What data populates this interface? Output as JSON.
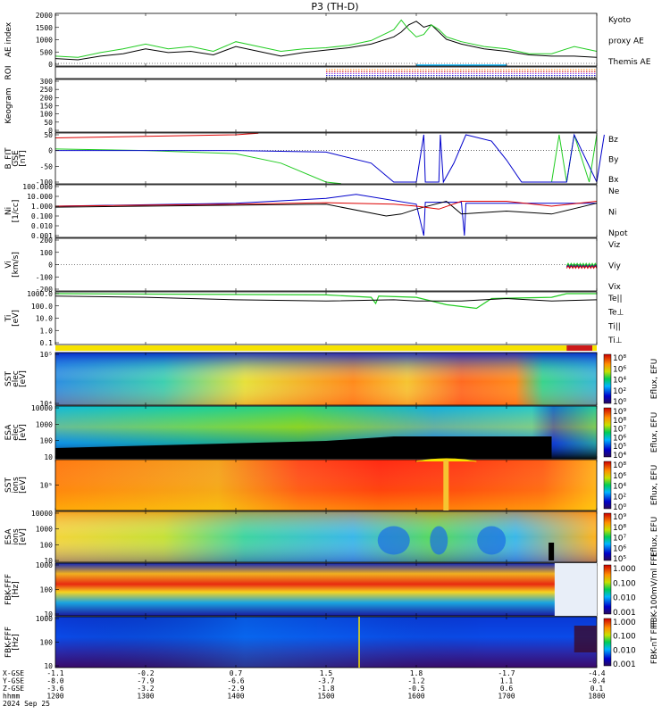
{
  "title": "P3 (TH-D)",
  "date_label": "2024 Sep 25",
  "chart_data": {
    "type": "line",
    "x_axis": {
      "tick_labels": [
        "1200",
        "1300",
        "1400",
        "1500",
        "1600",
        "1700",
        "1800"
      ],
      "hhmm": [
        1200,
        1300,
        1400,
        1500,
        1600,
        1700,
        1800
      ],
      "row_labels": [
        "X-GSE",
        "Y-GSE",
        "Z-GSE",
        "hhmm"
      ],
      "rows": {
        "X-GSE": [
          "-1.1",
          "-0.2",
          "0.7",
          "1.5",
          "1.8",
          "-1.7",
          "-4.4"
        ],
        "Y-GSE": [
          "-8.0",
          "-7.9",
          "-6.6",
          "-3.7",
          "-1.2",
          "1.1",
          "-0.4"
        ],
        "Z-GSE": [
          "-3.6",
          "-3.2",
          "-2.9",
          "-1.8",
          "-0.5",
          "0.6",
          "0.1"
        ]
      }
    },
    "panels": [
      {
        "id": "ae",
        "ylabel": "AE index",
        "yticks": [
          "2000",
          "1500",
          "1000",
          "500",
          "0"
        ],
        "legend": [
          {
            "text": "Kyoto",
            "color": "#22cc22"
          },
          {
            "text": "proxy AE",
            "color": "#22cc22"
          },
          {
            "text": "Themis AE",
            "color": "#000000"
          }
        ],
        "series": [
          {
            "color": "#000000",
            "x": [
              1200,
              1215,
              1230,
              1245,
              1300,
              1315,
              1330,
              1345,
              1400,
              1415,
              1430,
              1445,
              1500,
              1515,
              1530,
              1545,
              1550,
              1555,
              1600,
              1605,
              1610,
              1615,
              1620,
              1630,
              1645,
              1700,
              1715,
              1730,
              1745,
              1800
            ],
            "y": [
              200,
              150,
              300,
              400,
              600,
              450,
              500,
              350,
              700,
              500,
              300,
              450,
              550,
              650,
              800,
              1100,
              1300,
              1600,
              1750,
              1500,
              1600,
              1300,
              1000,
              800,
              600,
              500,
              350,
              300,
              300,
              250
            ]
          },
          {
            "color": "#22cc22",
            "x": [
              1200,
              1215,
              1230,
              1245,
              1300,
              1315,
              1330,
              1345,
              1400,
              1415,
              1430,
              1445,
              1500,
              1515,
              1530,
              1545,
              1550,
              1555,
              1600,
              1605,
              1610,
              1615,
              1620,
              1630,
              1645,
              1700,
              1715,
              1730,
              1745,
              1800
            ],
            "y": [
              300,
              250,
              450,
              600,
              800,
              600,
              700,
              500,
              900,
              700,
              500,
              600,
              650,
              750,
              950,
              1400,
              1800,
              1400,
              1100,
              1200,
              1600,
              1400,
              1100,
              900,
              700,
              600,
              400,
              400,
              700,
              500
            ]
          }
        ]
      },
      {
        "id": "roi",
        "ylabel": "ROI"
      },
      {
        "id": "keogram",
        "ylabel": "Keogram",
        "yticks": [
          "300",
          "250",
          "200",
          "150",
          "100",
          "50",
          "0"
        ]
      },
      {
        "id": "bfit",
        "ylabel": "B_FIT GSE [nT]",
        "yticks": [
          "50",
          "0",
          "-50",
          "-100"
        ],
        "legend": [
          {
            "text": "Bz",
            "color": "#dd0000"
          },
          {
            "text": "By",
            "color": "#22cc22"
          },
          {
            "text": "Bx",
            "color": "#0000cc"
          }
        ]
      },
      {
        "id": "ni",
        "ylabel": "Ni [1/cc]",
        "yticks": [
          "100.000",
          "10.000",
          "1.000",
          "0.100",
          "0.010",
          "0.001"
        ],
        "legend": [
          {
            "text": "Ne",
            "color": "#dd0000"
          },
          {
            "text": "Ni",
            "color": "#000000"
          },
          {
            "text": "Npot",
            "color": "#0000cc"
          }
        ]
      },
      {
        "id": "vi",
        "ylabel": "Vi [km/s]",
        "yticks": [
          "200",
          "100",
          "0",
          "-100",
          "-200"
        ],
        "legend": [
          {
            "text": "Viz",
            "color": "#dd0000"
          },
          {
            "text": "Viy",
            "color": "#22cc22"
          },
          {
            "text": "Vix",
            "color": "#0000cc"
          }
        ]
      },
      {
        "id": "ti",
        "ylabel": "Ti [eV]",
        "yticks": [
          "1000.0",
          "100.0",
          "10.0",
          "1.0",
          "0.1"
        ],
        "legend": [
          {
            "text": "Te||",
            "color": "#000000"
          },
          {
            "text": "Te⊥",
            "color": "#dd0000"
          },
          {
            "text": "Ti||",
            "color": "#22cc22"
          },
          {
            "text": "Ti⊥",
            "color": "#0000cc"
          }
        ]
      },
      {
        "id": "sst_e",
        "ylabel": "SST elec [eV]",
        "yticks": [
          "10⁵",
          "10⁴"
        ],
        "colorbar": {
          "label": "Eflux, EFU",
          "ticks": [
            "10⁸",
            "10⁶",
            "10⁴",
            "10²",
            "10⁰"
          ]
        }
      },
      {
        "id": "esa_e",
        "ylabel": "ESA elec [eV]",
        "yticks": [
          "10000",
          "1000",
          "100",
          "10"
        ],
        "colorbar": {
          "label": "Eflux, EFU",
          "ticks": [
            "10⁹",
            "10⁸",
            "10⁷",
            "10⁶",
            "10⁵",
            "10⁴"
          ]
        }
      },
      {
        "id": "sst_i",
        "ylabel": "SST ions [eV]",
        "yticks": [
          "10⁵"
        ],
        "colorbar": {
          "label": "Eflux, EFU",
          "ticks": [
            "10⁸",
            "10⁶",
            "10⁴",
            "10²",
            "10⁰"
          ]
        }
      },
      {
        "id": "esa_i",
        "ylabel": "ESA ions [eV]",
        "yticks": [
          "10000",
          "1000",
          "100",
          "10"
        ],
        "colorbar": {
          "label": "Eflux, EFU",
          "ticks": [
            "10⁹",
            "10⁸",
            "10⁷",
            "10⁶",
            "10⁵"
          ]
        }
      },
      {
        "id": "fbk_fff",
        "ylabel": "FBK-FFF [Hz]",
        "yticks": [
          "1000",
          "100",
          "10"
        ],
        "colorbar": {
          "label": "FBK-100mV/ml FFF",
          "ticks": [
            "1.000",
            "0.100",
            "0.010",
            "0.001"
          ]
        }
      },
      {
        "id": "fbk_fff2",
        "ylabel": "FBK-FFF [Hz]",
        "yticks": [
          "1000",
          "100",
          "10"
        ],
        "colorbar": {
          "label": "FBK-nT FFF",
          "ticks": [
            "1.000",
            "0.100",
            "0.010",
            "0.001"
          ]
        }
      }
    ]
  }
}
